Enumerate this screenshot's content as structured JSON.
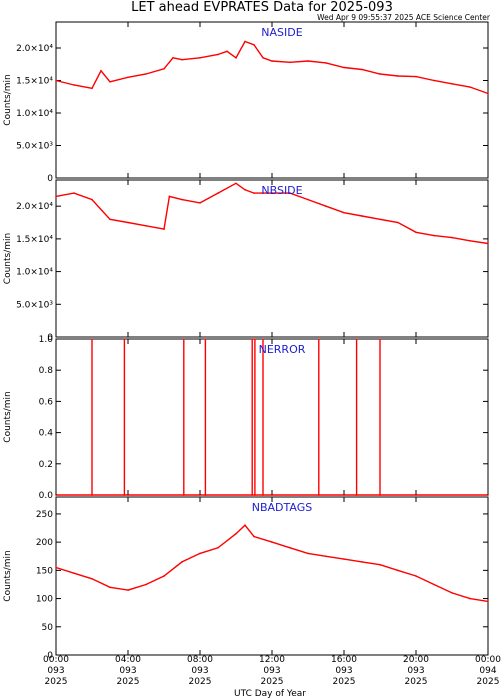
{
  "header": {
    "title": "LET ahead EVPRATES Data for 2025-093",
    "timestamp": "Wed Apr  9 09:55:37 2025 ACE Science Center"
  },
  "colors": {
    "series": "#ff0000",
    "panel_title": "#2020d0",
    "axis": "#000000"
  },
  "chart_data": [
    {
      "type": "line",
      "title": "NASIDE",
      "ylabel": "Counts/min",
      "ylim": [
        0,
        24000
      ],
      "yticks": [
        0,
        5000,
        10000,
        15000,
        20000
      ],
      "ytick_labels": [
        "0",
        "5.0×10³",
        "1.0×10⁴",
        "1.5×10⁴",
        "2.0×10⁴"
      ],
      "x": [
        0,
        1,
        2,
        2.5,
        3,
        4,
        5,
        6,
        6.5,
        7,
        8,
        9,
        9.5,
        10,
        10.5,
        11,
        11.5,
        12,
        13,
        14,
        15,
        16,
        17,
        18,
        19,
        20,
        21,
        22,
        23,
        24
      ],
      "values": [
        15000,
        14300,
        13800,
        16500,
        14800,
        15500,
        16000,
        16800,
        18500,
        18200,
        18500,
        19000,
        19500,
        18500,
        21000,
        20500,
        18500,
        18000,
        17800,
        18000,
        17700,
        17000,
        16700,
        16000,
        15700,
        15600,
        15000,
        14500,
        14000,
        13000
      ]
    },
    {
      "type": "line",
      "title": "NBSIDE",
      "ylabel": "Counts/min",
      "ylim": [
        0,
        24000
      ],
      "yticks": [
        0,
        5000,
        10000,
        15000,
        20000
      ],
      "ytick_labels": [
        "0",
        "5.0×10³",
        "1.0×10⁴",
        "1.5×10⁴",
        "2.0×10⁴"
      ],
      "x": [
        0,
        1,
        2,
        3,
        4,
        5,
        6,
        6.3,
        7,
        8,
        9,
        10,
        10.5,
        11,
        11.5,
        12,
        13,
        14,
        15,
        16,
        17,
        18,
        19,
        20,
        21,
        22,
        23,
        24
      ],
      "values": [
        21500,
        22000,
        21000,
        18000,
        17500,
        17000,
        16500,
        21500,
        21000,
        20500,
        22000,
        23500,
        22500,
        22000,
        22000,
        22000,
        22000,
        21000,
        20000,
        19000,
        18500,
        18000,
        17500,
        16000,
        15500,
        15200,
        14700,
        14300
      ]
    },
    {
      "type": "line",
      "title": "NERROR",
      "ylabel": "Counts/min",
      "ylim": [
        0,
        1.0
      ],
      "yticks": [
        0,
        0.2,
        0.4,
        0.6,
        0.8,
        1.0
      ],
      "ytick_labels": [
        "0.0",
        "0.2",
        "0.4",
        "0.6",
        "0.8",
        "1.0"
      ],
      "x": [
        0,
        2.0,
        2.0,
        2.0,
        3.8,
        3.8,
        3.8,
        7.1,
        7.1,
        7.1,
        8.3,
        8.3,
        8.3,
        10.9,
        10.9,
        10.9,
        11.05,
        11.05,
        11.05,
        11.5,
        11.5,
        11.5,
        14.6,
        14.6,
        14.6,
        16.7,
        16.7,
        16.7,
        18.0,
        18.0,
        18.0,
        24
      ],
      "values": [
        0,
        0,
        1,
        0,
        0,
        1,
        0,
        0,
        1,
        0,
        0,
        1,
        0,
        0,
        1,
        0,
        0,
        1,
        0,
        0,
        1,
        0,
        0,
        1,
        0,
        0,
        1,
        0,
        0,
        1,
        0,
        0
      ]
    },
    {
      "type": "line",
      "title": "NBADTAGS",
      "ylabel": "Counts/min",
      "ylim": [
        0,
        280
      ],
      "yticks": [
        0,
        50,
        100,
        150,
        200,
        250
      ],
      "ytick_labels": [
        "0",
        "50",
        "100",
        "150",
        "200",
        "250"
      ],
      "x": [
        0,
        1,
        2,
        3,
        4,
        5,
        6,
        7,
        8,
        9,
        10,
        10.5,
        11,
        12,
        13,
        14,
        15,
        16,
        17,
        18,
        19,
        20,
        21,
        22,
        23,
        24
      ],
      "values": [
        155,
        145,
        135,
        120,
        115,
        125,
        140,
        165,
        180,
        190,
        215,
        230,
        210,
        200,
        190,
        180,
        175,
        170,
        165,
        160,
        150,
        140,
        125,
        110,
        100,
        95
      ]
    }
  ],
  "x_axis": {
    "label": "UTC Day of Year",
    "range": [
      0,
      24
    ],
    "ticks": [
      {
        "hour": 0,
        "time": "00:00",
        "doy": "093",
        "year": "2025"
      },
      {
        "hour": 4,
        "time": "04:00",
        "doy": "093",
        "year": "2025"
      },
      {
        "hour": 8,
        "time": "08:00",
        "doy": "093",
        "year": "2025"
      },
      {
        "hour": 12,
        "time": "12:00",
        "doy": "093",
        "year": "2025"
      },
      {
        "hour": 16,
        "time": "16:00",
        "doy": "093",
        "year": "2025"
      },
      {
        "hour": 20,
        "time": "20:00",
        "doy": "093",
        "year": "2025"
      },
      {
        "hour": 24,
        "time": "00:00",
        "doy": "094",
        "year": "2025"
      }
    ]
  }
}
